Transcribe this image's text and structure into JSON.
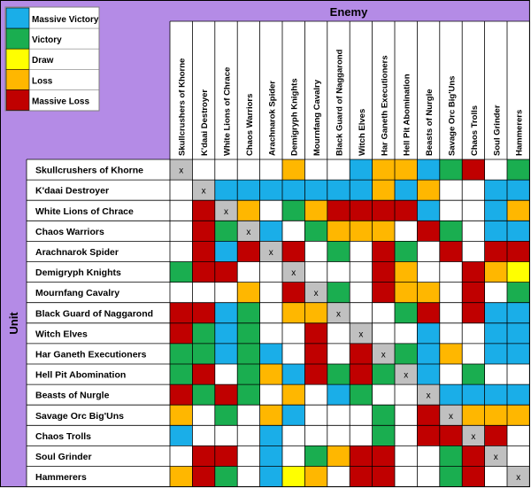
{
  "chart_data": {
    "type": "heatmap",
    "column_header": "Enemy",
    "row_header": "Unit",
    "units": [
      "Skullcrushers of Khorne",
      "K'daai Destroyer",
      "White Lions of Chrace",
      "Chaos Warriors",
      "Arachnarok Spider",
      "Demigryph Knights",
      "Mournfang Cavalry",
      "Black Guard of Naggarond",
      "Witch Elves",
      "Har Ganeth Executioners",
      "Hell Pit Abomination",
      "Beasts of Nurgle",
      "Savage Orc Big'Uns",
      "Chaos Trolls",
      "Soul Grinder",
      "Hammerers"
    ],
    "legend": [
      {
        "key": "MV",
        "label": "Massive Victory",
        "color": "#1aaee8"
      },
      {
        "key": "V",
        "label": "Victory",
        "color": "#1aae50"
      },
      {
        "key": "D",
        "label": "Draw",
        "color": "#ffff00"
      },
      {
        "key": "L",
        "label": "Loss",
        "color": "#ffb700"
      },
      {
        "key": "ML",
        "label": "Massive Loss",
        "color": "#c00000"
      }
    ],
    "diagonal_mark": "x",
    "matrix": [
      [
        "X",
        "",
        "",
        "",
        "",
        "L",
        "",
        "",
        "MV",
        "L",
        "L",
        "MV",
        "V",
        "ML",
        "",
        "V"
      ],
      [
        "",
        "X",
        "MV",
        "MV",
        "MV",
        "MV",
        "MV",
        "MV",
        "MV",
        "L",
        "MV",
        "L",
        "",
        "",
        "MV",
        "MV"
      ],
      [
        "",
        "ML",
        "X",
        "L",
        "",
        "V",
        "L",
        "ML",
        "ML",
        "ML",
        "ML",
        "MV",
        "",
        "",
        "MV",
        "L"
      ],
      [
        "",
        "ML",
        "V",
        "X",
        "MV",
        "",
        "V",
        "L",
        "L",
        "L",
        "",
        "ML",
        "V",
        "",
        "MV",
        "MV"
      ],
      [
        "",
        "ML",
        "MV",
        "ML",
        "X",
        "ML",
        "",
        "V",
        "",
        "ML",
        "V",
        "",
        "ML",
        "",
        "ML",
        "ML"
      ],
      [
        "V",
        "ML",
        "ML",
        "",
        "",
        "X",
        "",
        "",
        "",
        "ML",
        "L",
        "",
        "",
        "ML",
        "L",
        "D"
      ],
      [
        "",
        "",
        "",
        "L",
        "",
        "ML",
        "X",
        "V",
        "",
        "ML",
        "L",
        "L",
        "",
        "ML",
        "",
        "V"
      ],
      [
        "ML",
        "ML",
        "MV",
        "V",
        "",
        "L",
        "L",
        "X",
        "",
        "",
        "V",
        "ML",
        "",
        "ML",
        "MV",
        "MV"
      ],
      [
        "ML",
        "V",
        "MV",
        "V",
        "",
        "",
        "ML",
        "",
        "X",
        "",
        "",
        "MV",
        "",
        "",
        "MV",
        "MV"
      ],
      [
        "V",
        "V",
        "MV",
        "V",
        "MV",
        "",
        "ML",
        "",
        "ML",
        "X",
        "V",
        "MV",
        "L",
        "",
        "MV",
        "MV"
      ],
      [
        "V",
        "ML",
        "",
        "V",
        "L",
        "MV",
        "ML",
        "V",
        "ML",
        "V",
        "X",
        "MV",
        "",
        "V",
        "",
        ""
      ],
      [
        "ML",
        "V",
        "ML",
        "V",
        "",
        "L",
        "",
        "MV",
        "V",
        "",
        "",
        "X",
        "MV",
        "MV",
        "MV",
        "MV"
      ],
      [
        "L",
        "",
        "V",
        "",
        "L",
        "MV",
        "",
        "",
        "",
        "V",
        "",
        "ML",
        "X",
        "L",
        "L",
        "L"
      ],
      [
        "MV",
        "",
        "",
        "",
        "MV",
        "",
        "",
        "",
        "",
        "V",
        "",
        "ML",
        "ML",
        "X",
        "ML",
        ""
      ],
      [
        "",
        "ML",
        "ML",
        "",
        "MV",
        "",
        "V",
        "L",
        "ML",
        "ML",
        "",
        "",
        "V",
        "ML",
        "X",
        ""
      ],
      [
        "L",
        "ML",
        "V",
        "",
        "MV",
        "D",
        "L",
        "",
        "ML",
        "ML",
        "",
        "",
        "V",
        "ML",
        "",
        "X"
      ]
    ]
  }
}
